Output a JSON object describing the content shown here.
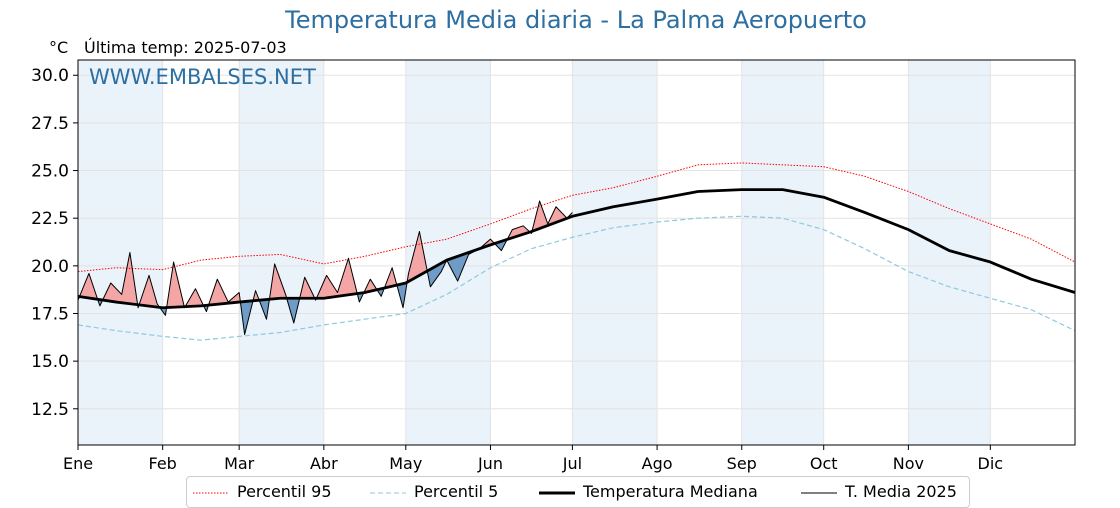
{
  "header": {
    "title": "Temperatura Media diaria - La Palma Aeropuerto",
    "unit": "°C",
    "last_temp": "Última temp: 2025-07-03",
    "watermark": "WWW.EMBALSES.NET"
  },
  "legend": {
    "p95": "Percentil 95",
    "p5": "Percentil 5",
    "median": "Temperatura Mediana",
    "current": "T. Media 2025"
  },
  "colors": {
    "title": "#2d6fa1",
    "p95": "#ff0000",
    "p5": "#8fc9e0",
    "median": "#000000",
    "current": "#000000",
    "fill_above": "#f4a6a6",
    "fill_below": "#6f9cc6",
    "band": "#eaf2fa"
  },
  "chart_data": {
    "type": "line",
    "title": "Temperatura Media diaria - La Palma Aeropuerto",
    "ylabel": "°C",
    "ylim": [
      10.6,
      30.8
    ],
    "yticks": [
      12.5,
      15.0,
      17.5,
      20.0,
      22.5,
      25.0,
      27.5,
      30.0
    ],
    "xlim": [
      1,
      366
    ],
    "months": [
      "Ene",
      "Feb",
      "Mar",
      "Abr",
      "May",
      "Jun",
      "Jul",
      "Ago",
      "Sep",
      "Oct",
      "Nov",
      "Dic"
    ],
    "month_start_days": [
      1,
      32,
      60,
      91,
      121,
      152,
      182,
      213,
      244,
      274,
      305,
      335
    ],
    "shaded_months": [
      "Ene",
      "Mar",
      "May",
      "Jul",
      "Sep",
      "Nov"
    ],
    "grid": true,
    "legend_position": "bottom",
    "series": [
      {
        "name": "Percentil 95",
        "style": "dotted",
        "x": [
          1,
          15,
          32,
          46,
          60,
          75,
          91,
          106,
          121,
          136,
          152,
          167,
          182,
          197,
          213,
          228,
          244,
          259,
          274,
          289,
          305,
          320,
          335,
          350,
          366
        ],
        "y": [
          19.7,
          19.9,
          19.8,
          20.3,
          20.5,
          20.6,
          20.1,
          20.5,
          21.0,
          21.4,
          22.2,
          23.0,
          23.7,
          24.1,
          24.7,
          25.3,
          25.4,
          25.3,
          25.2,
          24.7,
          23.9,
          23.0,
          22.2,
          21.4,
          20.2
        ]
      },
      {
        "name": "Percentil 5",
        "style": "dashed",
        "x": [
          1,
          15,
          32,
          46,
          60,
          75,
          91,
          106,
          121,
          136,
          152,
          167,
          182,
          197,
          213,
          228,
          244,
          259,
          274,
          289,
          305,
          320,
          335,
          350,
          366
        ],
        "y": [
          16.9,
          16.6,
          16.3,
          16.1,
          16.3,
          16.5,
          16.9,
          17.2,
          17.5,
          18.5,
          19.9,
          20.9,
          21.5,
          22.0,
          22.3,
          22.5,
          22.6,
          22.5,
          21.9,
          20.9,
          19.7,
          18.9,
          18.3,
          17.7,
          16.6
        ]
      },
      {
        "name": "Temperatura Mediana",
        "style": "solid-thick",
        "x": [
          1,
          15,
          32,
          46,
          60,
          75,
          91,
          106,
          121,
          136,
          152,
          167,
          182,
          197,
          213,
          228,
          244,
          259,
          274,
          289,
          305,
          320,
          335,
          350,
          366
        ],
        "y": [
          18.4,
          18.1,
          17.8,
          17.9,
          18.1,
          18.3,
          18.3,
          18.6,
          19.1,
          20.3,
          21.1,
          21.8,
          22.6,
          23.1,
          23.5,
          23.9,
          24.0,
          24.0,
          23.6,
          22.8,
          21.9,
          20.8,
          20.2,
          19.3,
          18.6
        ]
      },
      {
        "name": "T. Media 2025",
        "style": "solid-thin",
        "x": [
          1,
          5,
          9,
          13,
          17,
          20,
          23,
          27,
          30,
          33,
          36,
          40,
          44,
          48,
          52,
          56,
          60,
          62,
          66,
          70,
          73,
          77,
          80,
          84,
          88,
          92,
          96,
          100,
          104,
          108,
          112,
          116,
          120,
          122,
          126,
          130,
          134,
          136,
          140,
          144,
          148,
          152,
          156,
          160,
          164,
          167,
          170,
          173,
          176,
          180,
          182
        ],
        "y": [
          18.2,
          19.6,
          17.9,
          19.1,
          18.5,
          20.7,
          17.8,
          19.5,
          18.0,
          17.4,
          20.2,
          17.8,
          18.8,
          17.6,
          19.3,
          18.1,
          18.6,
          16.4,
          18.7,
          17.2,
          20.1,
          18.5,
          17.0,
          19.4,
          18.2,
          19.5,
          18.6,
          20.4,
          18.1,
          19.3,
          18.4,
          19.9,
          17.8,
          19.6,
          21.8,
          18.9,
          19.7,
          20.3,
          19.2,
          20.6,
          20.9,
          21.4,
          20.8,
          21.9,
          22.1,
          21.7,
          23.4,
          22.2,
          23.1,
          22.5,
          22.8
        ]
      }
    ]
  }
}
